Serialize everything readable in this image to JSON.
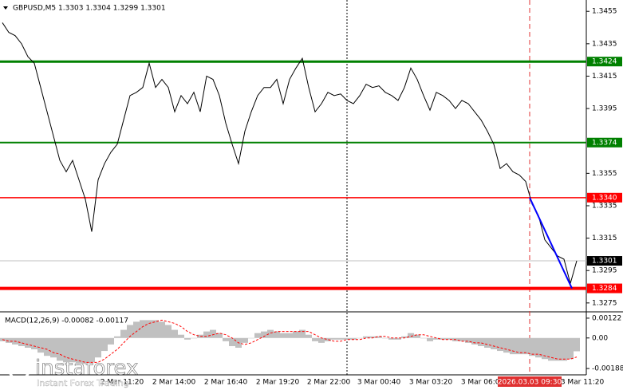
{
  "chart_data": [
    {
      "type": "line",
      "title": "GBPUSD,M5  1.3303 1.3304 1.3299 1.3301",
      "color": "#000000",
      "values": [
        1.3448,
        1.3442,
        1.344,
        1.3435,
        1.3427,
        1.3423,
        1.3408,
        1.3393,
        1.3378,
        1.3363,
        1.3356,
        1.3363,
        1.3351,
        1.3339,
        1.3319,
        1.3351,
        1.3361,
        1.3368,
        1.3373,
        1.3388,
        1.3403,
        1.3405,
        1.3408,
        1.3423,
        1.3408,
        1.3413,
        1.3408,
        1.3393,
        1.3403,
        1.3398,
        1.3405,
        1.3393,
        1.3415,
        1.3413,
        1.3403,
        1.3386,
        1.3373,
        1.3361,
        1.3381,
        1.3393,
        1.3403,
        1.3408,
        1.3408,
        1.3413,
        1.3398,
        1.3413,
        1.342,
        1.3426,
        1.3408,
        1.3393,
        1.3398,
        1.3405,
        1.3403,
        1.3404,
        1.34,
        1.3398,
        1.3403,
        1.341,
        1.3408,
        1.3409,
        1.3405,
        1.3403,
        1.34,
        1.3408,
        1.342,
        1.3413,
        1.3403,
        1.3394,
        1.3405,
        1.3403,
        1.34,
        1.3395,
        1.34,
        1.3398,
        1.3393,
        1.3388,
        1.3381,
        1.3373,
        1.3358,
        1.3361,
        1.3356,
        1.3354,
        1.335,
        1.3336,
        1.3329,
        1.3314,
        1.3309,
        1.3304,
        1.3302,
        1.3287,
        1.3301
      ],
      "ylim": [
        1.327,
        1.3462
      ],
      "yticks": [
        1.3455,
        1.3435,
        1.3415,
        1.3395,
        1.3355,
        1.3335,
        1.3315,
        1.3295,
        1.3275
      ],
      "levels": [
        {
          "value": 1.3424,
          "color": "#008000",
          "width": 3
        },
        {
          "value": 1.3374,
          "color": "#008000",
          "width": 2
        },
        {
          "value": 1.334,
          "label": "1.3340",
          "color": "#ff0000",
          "width": 1.5
        },
        {
          "value": 1.3284,
          "color": "#ff0000",
          "width": 4
        }
      ],
      "current_price": 1.3301,
      "trendline": {
        "start": 1.334,
        "end": 1.3284,
        "color": "#0000ff"
      },
      "time_labels": [
        "2 Mar 11:20",
        "2 Mar 14:00",
        "2 Mar 16:40",
        "2 Mar 19:20",
        "2 Mar 22:00",
        "3 Mar 00:40",
        "3 Mar 03:20",
        "3 Mar 06:00",
        "3 Mar 11:20"
      ],
      "cursor_time": "2026.03.03 09:30",
      "branding": {
        "name": "instaforex",
        "tagline": "Instant Forex Trading"
      }
    },
    {
      "type": "macd",
      "title": "MACD(12,26,9) -0.00082 -0.00117",
      "ylim": [
        -0.00227,
        0.00156
      ],
      "yticks": [
        0.00122,
        {
          "value": 0,
          "label": "0.00"
        },
        -0.00188
      ],
      "histogram": {
        "color": "#c0c0c0",
        "values": [
          -0.0002,
          -0.0003,
          -0.0004,
          -0.0005,
          -0.0006,
          -0.0007,
          -0.0009,
          -0.0011,
          -0.0012,
          -0.0014,
          -0.0015,
          -0.0015,
          -0.0016,
          -0.0016,
          -0.0015,
          -0.0012,
          -0.0008,
          -0.0004,
          0.0001,
          0.0005,
          0.0008,
          0.001,
          0.0011,
          0.0011,
          0.0011,
          0.001,
          0.0008,
          0.0005,
          0.0002,
          -0.0001,
          0.0,
          0.0002,
          0.0004,
          0.0005,
          0.0003,
          -0.0002,
          -0.0005,
          -0.0006,
          -0.0003,
          0.0,
          0.0003,
          0.0004,
          0.0005,
          0.0004,
          0.0003,
          0.0003,
          0.0004,
          0.0005,
          0.0002,
          -0.0002,
          -0.0003,
          -0.0002,
          -0.0001,
          -0.0001,
          -0.0001,
          -0.0001,
          0.0,
          0.0001,
          0.0001,
          0.0001,
          0.0,
          -0.0001,
          -0.0001,
          0.0001,
          0.0003,
          0.0002,
          0.0,
          -0.0002,
          -0.0001,
          -0.0001,
          -0.0001,
          -0.0002,
          -0.0002,
          -0.0003,
          -0.0004,
          -0.0005,
          -0.0006,
          -0.0007,
          -0.0008,
          -0.0009,
          -0.001,
          -0.001,
          -0.001,
          -0.0011,
          -0.0012,
          -0.0013,
          -0.0014,
          -0.0014,
          -0.0014,
          -0.0013,
          -0.00082
        ]
      },
      "signal": {
        "color": "#ff0000",
        "values": [
          -0.0001,
          -0.0002,
          -0.0002,
          -0.0003,
          -0.0004,
          -0.0005,
          -0.0006,
          -0.0007,
          -0.0009,
          -0.001,
          -0.0012,
          -0.0013,
          -0.0014,
          -0.0015,
          -0.0015,
          -0.0015,
          -0.0013,
          -0.001,
          -0.0007,
          -0.0003,
          0.0001,
          0.0004,
          0.0007,
          0.0009,
          0.001,
          0.0011,
          0.001,
          0.0009,
          0.0007,
          0.0004,
          0.0002,
          0.0001,
          0.0001,
          0.0002,
          0.0003,
          0.0002,
          0.0,
          -0.0003,
          -0.0004,
          -0.0003,
          -0.0001,
          0.0001,
          0.0003,
          0.0004,
          0.0004,
          0.0004,
          0.0004,
          0.0004,
          0.0004,
          0.0002,
          0.0,
          -0.0001,
          -0.0002,
          -0.0002,
          -0.0001,
          -0.0001,
          -0.0001,
          0.0,
          0.0,
          0.0001,
          0.0001,
          0.0,
          0.0,
          0.0,
          0.0001,
          0.0002,
          0.0002,
          0.0001,
          0.0,
          -0.0001,
          -0.0001,
          -0.0001,
          -0.0002,
          -0.0002,
          -0.0003,
          -0.0003,
          -0.0004,
          -0.0005,
          -0.0006,
          -0.0007,
          -0.0008,
          -0.0009,
          -0.0009,
          -0.001,
          -0.001,
          -0.0011,
          -0.0012,
          -0.0013,
          -0.0013,
          -0.0013,
          -0.00117
        ]
      }
    }
  ]
}
